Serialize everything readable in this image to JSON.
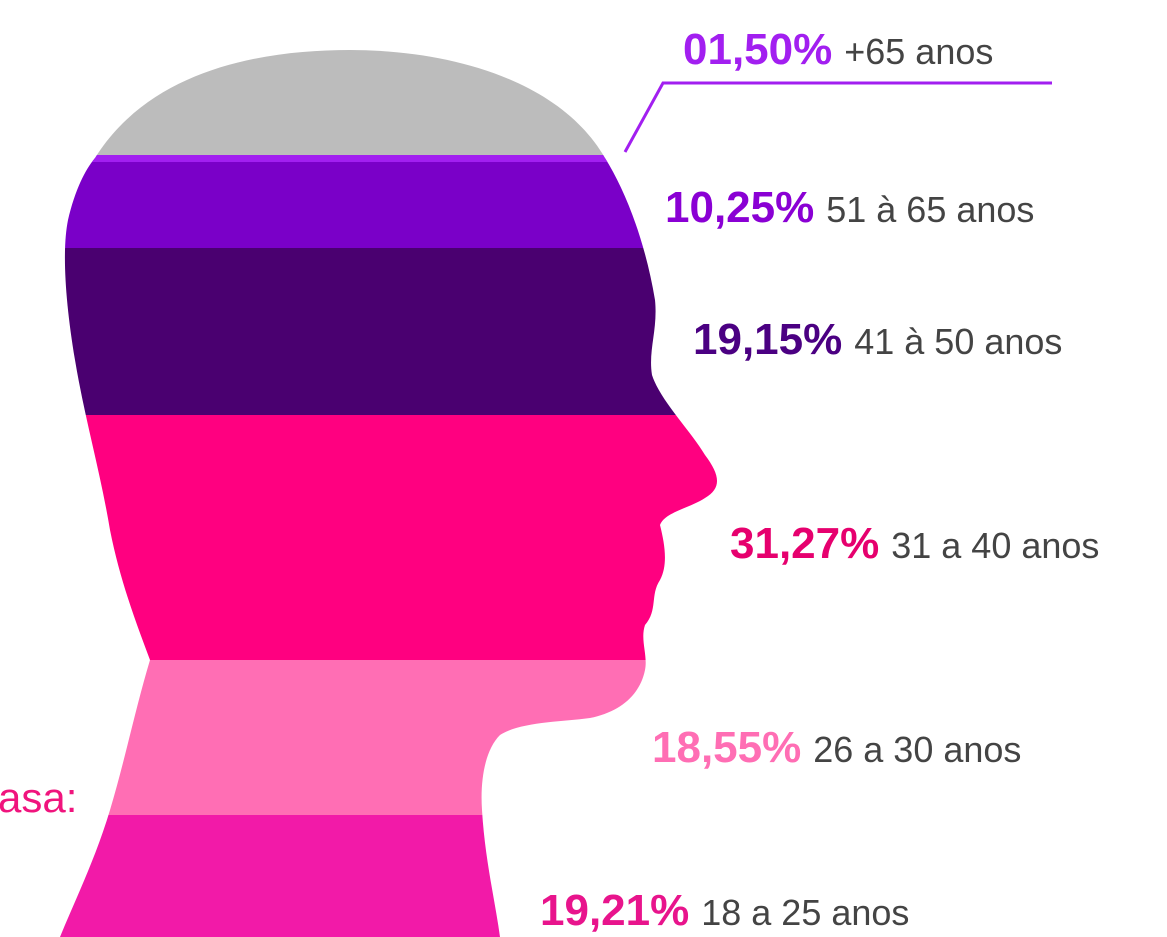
{
  "chart_data": {
    "type": "head",
    "annotation": "asa:",
    "annotation_color": "#f0147d",
    "categories": [
      "+65 anos",
      "51 à 65 anos",
      "41 à 50 anos",
      "31 a 40 anos",
      "26 a 30 anos",
      "18 a 25 anos"
    ],
    "values": [
      1.5,
      10.25,
      19.15,
      31.27,
      18.55,
      19.21
    ],
    "value_labels": [
      "01,50%",
      "10,25%",
      "19,15%",
      "31,27%",
      "18,55%",
      "19,21%"
    ],
    "label_colors": [
      "#a21ff0",
      "#8a00d4",
      "#4b0082",
      "#e6006e",
      "#ff6eb4",
      "#e8148c"
    ],
    "band_colors": [
      "#bcbcbc",
      "#7a00c8",
      "#4a0070",
      "#ff0080",
      "#ff6eb4",
      "#f21aa8"
    ]
  }
}
